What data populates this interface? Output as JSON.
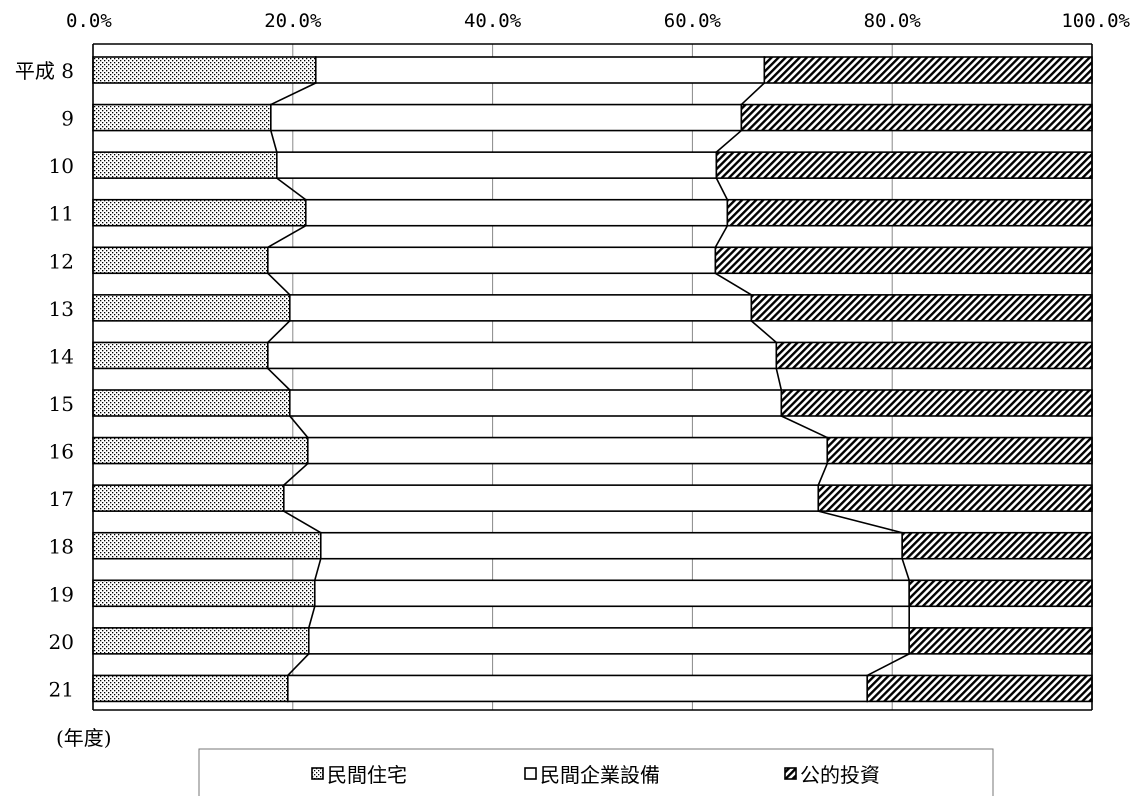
{
  "chart_data": {
    "type": "bar",
    "orientation": "horizontal",
    "stacking": "percent",
    "series_lines": true,
    "categories": [
      "平成 8",
      "9",
      "10",
      "11",
      "12",
      "13",
      "14",
      "15",
      "16",
      "17",
      "18",
      "19",
      "20",
      "21"
    ],
    "series": [
      {
        "name": "民間住宅",
        "pattern": "dots",
        "values": [
          22.3,
          17.8,
          18.4,
          21.3,
          17.5,
          19.7,
          17.5,
          19.7,
          21.5,
          19.1,
          22.8,
          22.2,
          21.6,
          19.5
        ]
      },
      {
        "name": "民間企業設備",
        "pattern": "white",
        "values": [
          44.9,
          47.1,
          44.0,
          42.2,
          44.8,
          46.2,
          50.9,
          49.2,
          52.0,
          53.5,
          58.2,
          59.5,
          60.1,
          58.0
        ]
      },
      {
        "name": "公的投資",
        "pattern": "diagonal",
        "values": [
          32.8,
          35.1,
          37.6,
          36.5,
          37.7,
          34.1,
          31.6,
          31.1,
          26.5,
          27.4,
          19.0,
          18.3,
          18.3,
          22.5
        ]
      }
    ],
    "xlim": [
      0,
      100
    ],
    "xticks": [
      "0.0%",
      "20.0%",
      "40.0%",
      "60.0%",
      "80.0%",
      "100.0%"
    ],
    "grid": true,
    "unit_label": "(年度)",
    "legend": {
      "placement": "bottom",
      "items": [
        "民間住宅",
        "民間企業設備",
        "公的投資"
      ]
    },
    "colors": {
      "fill": "#ffffff",
      "stroke": "#000000",
      "grid": "#888888"
    }
  }
}
